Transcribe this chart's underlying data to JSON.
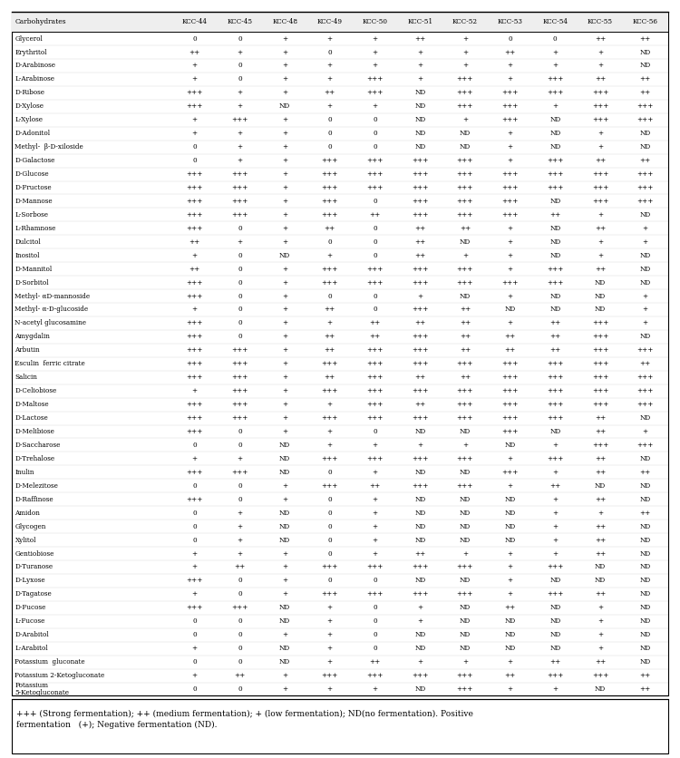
{
  "headers": [
    "Carbohydrates",
    "KCC-44",
    "KCC-45",
    "KCC-48",
    "KCC-49",
    "KCC-50",
    "KCC-51",
    "KCC-52",
    "KCC-53",
    "KCC-54",
    "KCC-55",
    "KCC-56"
  ],
  "rows": [
    [
      "Glycerol",
      "0",
      "0",
      "+",
      "+",
      "+",
      "++",
      "+",
      "0",
      "0",
      "++",
      "++"
    ],
    [
      "Erythritol",
      "++",
      "+",
      "+",
      "0",
      "+",
      "+",
      "+",
      "++",
      "+",
      "+",
      "ND"
    ],
    [
      "D-Arabinose",
      "+",
      "0",
      "+",
      "+",
      "+",
      "+",
      "+",
      "+",
      "+",
      "+",
      "ND"
    ],
    [
      "L-Arabinose",
      "+",
      "0",
      "+",
      "+",
      "+++",
      "+",
      "+++",
      "+",
      "+++",
      "++",
      "++"
    ],
    [
      "D-Ribose",
      "+++",
      "+",
      "+",
      "++",
      "+++",
      "ND",
      "+++",
      "+++",
      "+++",
      "+++",
      "++"
    ],
    [
      "D-Xylose",
      "+++",
      "+",
      "ND",
      "+",
      "+",
      "ND",
      "+++",
      "+++",
      "+",
      "+++",
      "+++"
    ],
    [
      "L-Xylose",
      "+",
      "+++",
      "+",
      "0",
      "0",
      "ND",
      "+",
      "+++",
      "ND",
      "+++",
      "+++"
    ],
    [
      "D-Adonitol",
      "+",
      "+",
      "+",
      "0",
      "0",
      "ND",
      "ND",
      "+",
      "ND",
      "+",
      "ND"
    ],
    [
      "Methyl-  β-D-xiloside",
      "0",
      "+",
      "+",
      "0",
      "0",
      "ND",
      "ND",
      "+",
      "ND",
      "+",
      "ND"
    ],
    [
      "D-Galactose",
      "0",
      "+",
      "+",
      "+++",
      "+++",
      "+++",
      "+++",
      "+",
      "+++",
      "++",
      "++"
    ],
    [
      "D-Glucose",
      "+++",
      "+++",
      "+",
      "+++",
      "+++",
      "+++",
      "+++",
      "+++",
      "+++",
      "+++",
      "+++"
    ],
    [
      "D-Fructose",
      "+++",
      "+++",
      "+",
      "+++",
      "+++",
      "+++",
      "+++",
      "+++",
      "+++",
      "+++",
      "+++"
    ],
    [
      "D-Mannose",
      "+++",
      "+++",
      "+",
      "+++",
      "0",
      "+++",
      "+++",
      "+++",
      "ND",
      "+++",
      "+++"
    ],
    [
      "L-Sorbose",
      "+++",
      "+++",
      "+",
      "+++",
      "++",
      "+++",
      "+++",
      "+++",
      "++",
      "+",
      "ND"
    ],
    [
      "L-Rhamnose",
      "+++",
      "0",
      "+",
      "++",
      "0",
      "++",
      "++",
      "+",
      "ND",
      "++",
      "+"
    ],
    [
      "Dulcitol",
      "++",
      "+",
      "+",
      "0",
      "0",
      "++",
      "ND",
      "+",
      "ND",
      "+",
      "+"
    ],
    [
      "Inositol",
      "+",
      "0",
      "ND",
      "+",
      "0",
      "++",
      "+",
      "+",
      "ND",
      "+",
      "ND"
    ],
    [
      "D-Mannitol",
      "++",
      "0",
      "+",
      "+++",
      "+++",
      "+++",
      "+++",
      "+",
      "+++",
      "++",
      "ND"
    ],
    [
      "D-Sorbitol",
      "+++",
      "0",
      "+",
      "+++",
      "+++",
      "+++",
      "+++",
      "+++",
      "+++",
      "ND",
      "ND"
    ],
    [
      "Methyl- αD-mannoside",
      "+++",
      "0",
      "+",
      "0",
      "0",
      "+",
      "ND",
      "+",
      "ND",
      "ND",
      "+"
    ],
    [
      "Methyl- α-D-glucoside",
      "+",
      "0",
      "+",
      "++",
      "0",
      "+++",
      "++",
      "ND",
      "ND",
      "ND",
      "+"
    ],
    [
      "N-acetyl glucosamine",
      "+++",
      "0",
      "+",
      "+",
      "++",
      "++",
      "++",
      "+",
      "++",
      "+++",
      "+"
    ],
    [
      "Amygdalin",
      "+++",
      "0",
      "+",
      "++",
      "++",
      "+++",
      "++",
      "++",
      "++",
      "+++",
      "ND"
    ],
    [
      "Arbutin",
      "+++",
      "+++",
      "+",
      "++",
      "+++",
      "+++",
      "++",
      "++",
      "++",
      "+++",
      "+++"
    ],
    [
      "Esculin  ferric citrate",
      "+++",
      "+++",
      "+",
      "+++",
      "+++",
      "+++",
      "+++",
      "+++",
      "+++",
      "+++",
      "++"
    ],
    [
      "Salicin",
      "+++",
      "+++",
      "+",
      "++",
      "+++",
      "++",
      "++",
      "+++",
      "+++",
      "+++",
      "+++"
    ],
    [
      "D-Celiobiose",
      "+",
      "+++",
      "+",
      "+++",
      "+++",
      "+++",
      "+++",
      "+++",
      "+++",
      "+++",
      "+++"
    ],
    [
      "D-Maltose",
      "+++",
      "+++",
      "+",
      "+",
      "+++",
      "++",
      "+++",
      "+++",
      "+++",
      "+++",
      "+++"
    ],
    [
      "D-Lactose",
      "+++",
      "+++",
      "+",
      "+++",
      "+++",
      "+++",
      "+++",
      "+++",
      "+++",
      "++",
      "ND"
    ],
    [
      "D-Melibiose",
      "+++",
      "0",
      "+",
      "+",
      "0",
      "ND",
      "ND",
      "+++",
      "ND",
      "++",
      "+"
    ],
    [
      "D-Saccharose",
      "0",
      "0",
      "ND",
      "+",
      "+",
      "+",
      "+",
      "ND",
      "+",
      "+++",
      "+++"
    ],
    [
      "D-Trehalose",
      "+",
      "+",
      "ND",
      "+++",
      "+++",
      "+++",
      "+++",
      "+",
      "+++",
      "++",
      "ND"
    ],
    [
      "Inulin",
      "+++",
      "+++",
      "ND",
      "0",
      "+",
      "ND",
      "ND",
      "+++",
      "+",
      "++",
      "++"
    ],
    [
      "D-Melezitose",
      "0",
      "0",
      "+",
      "+++",
      "++",
      "+++",
      "+++",
      "+",
      "++",
      "ND",
      "ND"
    ],
    [
      "D-Raffinose",
      "+++",
      "0",
      "+",
      "0",
      "+",
      "ND",
      "ND",
      "ND",
      "+",
      "++",
      "ND"
    ],
    [
      "Amidon",
      "0",
      "+",
      "ND",
      "0",
      "+",
      "ND",
      "ND",
      "ND",
      "+",
      "+",
      "++"
    ],
    [
      "Glycogen",
      "0",
      "+",
      "ND",
      "0",
      "+",
      "ND",
      "ND",
      "ND",
      "+",
      "++",
      "ND"
    ],
    [
      "Xylitol",
      "0",
      "+",
      "ND",
      "0",
      "+",
      "ND",
      "ND",
      "ND",
      "+",
      "++",
      "ND"
    ],
    [
      "Gentiobiose",
      "+",
      "+",
      "+",
      "0",
      "+",
      "++",
      "+",
      "+",
      "+",
      "++",
      "ND"
    ],
    [
      "D-Turanose",
      "+",
      "++",
      "+",
      "+++",
      "+++",
      "+++",
      "+++",
      "+",
      "+++",
      "ND",
      "ND"
    ],
    [
      "D-Lyxose",
      "+++",
      "0",
      "+",
      "0",
      "0",
      "ND",
      "ND",
      "+",
      "ND",
      "ND",
      "ND"
    ],
    [
      "D-Tagatose",
      "+",
      "0",
      "+",
      "+++",
      "+++",
      "+++",
      "+++",
      "+",
      "+++",
      "++",
      "ND"
    ],
    [
      "D-Fucose",
      "+++",
      "+++",
      "ND",
      "+",
      "0",
      "+",
      "ND",
      "++",
      "ND",
      "+",
      "ND"
    ],
    [
      "L-Fucose",
      "0",
      "0",
      "ND",
      "+",
      "0",
      "+",
      "ND",
      "ND",
      "ND",
      "+",
      "ND"
    ],
    [
      "D-Arabitol",
      "0",
      "0",
      "+",
      "+",
      "0",
      "ND",
      "ND",
      "ND",
      "ND",
      "+",
      "ND"
    ],
    [
      "L-Arabitol",
      "+",
      "0",
      "ND",
      "+",
      "0",
      "ND",
      "ND",
      "ND",
      "ND",
      "+",
      "ND"
    ],
    [
      "Potassium  gluconate",
      "0",
      "0",
      "ND",
      "+",
      "++",
      "+",
      "+",
      "+",
      "++",
      "++",
      "ND"
    ],
    [
      "Potassium 2-Ketogluconate",
      "+",
      "++",
      "+",
      "+++",
      "+++",
      "+++",
      "+++",
      "++",
      "+++",
      "+++",
      "++"
    ],
    [
      "Potassium\n5-Ketogluconate",
      "0",
      "0",
      "+",
      "+",
      "+",
      "ND",
      "+++",
      "+",
      "+",
      "ND",
      "++"
    ]
  ],
  "footnote": "+++ (Strong fermentation); ++ (medium fermentation); + (low fermentation); ND(no fermentation). Positive\nfermentation   (+); Negative fermentation (ND).",
  "col_widths": [
    2.2,
    0.62,
    0.62,
    0.62,
    0.62,
    0.62,
    0.62,
    0.62,
    0.62,
    0.62,
    0.62,
    0.62
  ],
  "header_fontsize": 5.5,
  "cell_fontsize": 5.2,
  "footnote_fontsize": 6.5
}
